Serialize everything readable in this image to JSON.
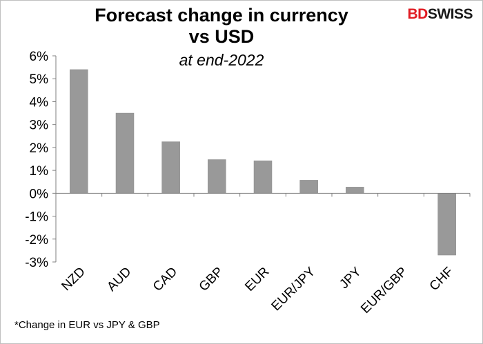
{
  "header": {
    "title_line1": "Forecast change in currency",
    "title_line2": "vs USD",
    "subtitle": "at end-2022"
  },
  "logo": {
    "part1": "BD",
    "part2": "SWISS",
    "accent_color": "#e11b22"
  },
  "footnote": "*Change in EUR vs JPY & GBP",
  "chart_data": {
    "type": "bar",
    "categories": [
      "NZD",
      "AUD",
      "CAD",
      "GBP",
      "EUR",
      "EUR/JPY",
      "JPY",
      "EUR/GBP",
      "CHF"
    ],
    "values": [
      5.4,
      3.5,
      2.25,
      1.47,
      1.42,
      0.57,
      0.27,
      0.0,
      -2.7
    ],
    "ylim": [
      -3,
      6
    ],
    "yticks": [
      6,
      5,
      4,
      3,
      2,
      1,
      0,
      -1,
      -2,
      -3
    ],
    "ytick_labels": [
      "6%",
      "5%",
      "4%",
      "3%",
      "2%",
      "1%",
      "0%",
      "-1%",
      "-2%",
      "-3%"
    ],
    "bar_color": "#999999",
    "grid": false,
    "legend": "none"
  }
}
